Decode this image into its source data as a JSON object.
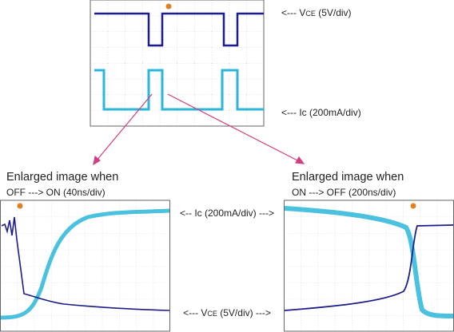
{
  "top_scope": {
    "vce_label": {
      "prefix": "<--- V",
      "sub": "CE",
      "suffix": " (5V/div)"
    },
    "ic_label": "<--- Ic (200mA/div)"
  },
  "left_panel": {
    "heading": "Enlarged image when",
    "caption": "OFF ---> ON  (40ns/div)"
  },
  "right_panel": {
    "heading": "Enlarged image when",
    "caption": "ON ---> OFF    (200ns/div)"
  },
  "middle_labels": {
    "ic_label": "<-- Ic (200mA/div) --->",
    "vce_label": {
      "prefix": "<--- V",
      "sub": "CE",
      "suffix": " (5V/div) --->"
    }
  }
}
